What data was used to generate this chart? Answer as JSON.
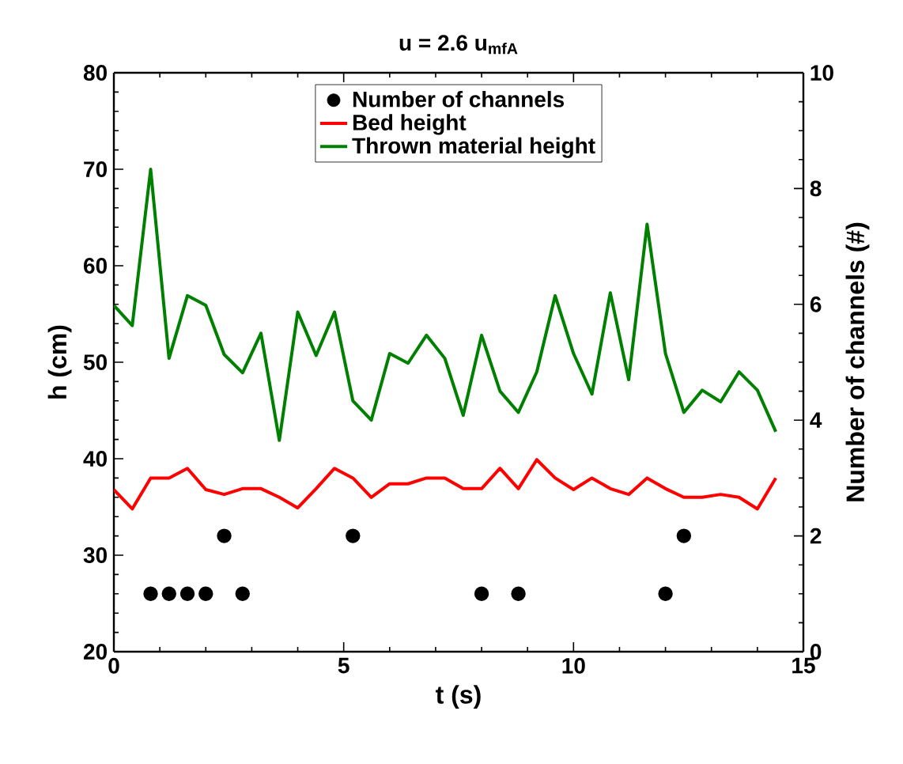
{
  "chart_data": {
    "type": "line",
    "title": "u = 2.6 u$_{mfA}$",
    "xlabel": "t (s)",
    "ylabel": "h (cm)",
    "y2label": "Number of channels (#)",
    "x": [
      0,
      0.4,
      0.8,
      1.2,
      1.6,
      2.0,
      2.4,
      2.8,
      3.2,
      3.6,
      4.0,
      4.4,
      4.8,
      5.2,
      5.6,
      6.0,
      6.4,
      6.8,
      7.2,
      7.6,
      8.0,
      8.4,
      8.8,
      9.2,
      9.6,
      10.0,
      10.4,
      10.8,
      11.2,
      11.6,
      12.0,
      12.4,
      12.8,
      13.2,
      13.6,
      14.0,
      14.4
    ],
    "series": [
      {
        "name": "Number of channels",
        "type": "scatter",
        "axis": "y2",
        "color": "#000000",
        "x": [
          0.8,
          1.2,
          1.6,
          2.0,
          2.4,
          2.8,
          5.2,
          8.0,
          8.8,
          12.0,
          12.4
        ],
        "values": [
          1,
          1,
          1,
          1,
          2,
          1,
          2,
          1,
          1,
          1,
          2
        ]
      },
      {
        "name": "Bed height",
        "color": "#ff0000",
        "values": [
          36.8,
          34.8,
          38.0,
          38.0,
          39.0,
          36.8,
          36.3,
          36.9,
          36.9,
          36.0,
          34.9,
          36.9,
          39.0,
          38.0,
          36.0,
          37.4,
          37.4,
          38.0,
          38.0,
          36.9,
          36.9,
          39.0,
          36.9,
          39.9,
          38.0,
          36.8,
          38.0,
          36.9,
          36.3,
          38.0,
          36.9,
          36.0,
          36.0,
          36.3,
          36.0,
          34.8,
          38.0
        ]
      },
      {
        "name": "Thrown material height",
        "color": "#008000",
        "values": [
          55.9,
          53.8,
          70.0,
          50.4,
          56.9,
          55.9,
          50.8,
          48.9,
          53.0,
          41.9,
          55.2,
          50.7,
          55.2,
          46.0,
          44.0,
          50.9,
          49.9,
          52.8,
          50.4,
          44.5,
          52.8,
          47.0,
          44.8,
          49.0,
          56.9,
          50.9,
          46.7,
          57.2,
          48.2,
          64.3,
          50.9,
          44.8,
          47.1,
          45.9,
          49.0,
          47.1,
          42.8
        ]
      }
    ],
    "xlim": [
      0,
      15
    ],
    "xticks": [
      0,
      5,
      10,
      15
    ],
    "ylim": [
      20,
      80
    ],
    "yticks": [
      20,
      30,
      40,
      50,
      60,
      70,
      80
    ],
    "y2lim": [
      0,
      10
    ],
    "y2ticks": [
      0,
      2,
      4,
      6,
      8,
      10
    ],
    "legend": "top",
    "grid": false
  }
}
